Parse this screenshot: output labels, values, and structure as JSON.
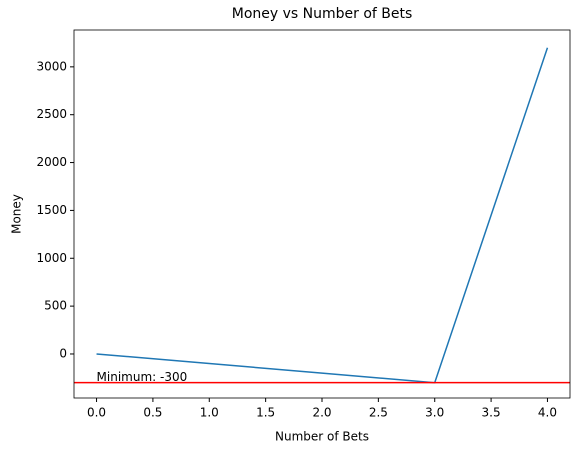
{
  "chart_data": {
    "type": "line",
    "title": "Money vs Number of Bets",
    "x_label": "Number of Bets",
    "y_label": "Money",
    "x": [
      0,
      1,
      2,
      3,
      4
    ],
    "series": [
      {
        "name": "Money",
        "color": "#1f77b4",
        "values": [
          0,
          -100,
          -200,
          -300,
          3200
        ]
      }
    ],
    "xlim": [
      -0.2,
      4.2
    ],
    "xticks": [
      {
        "value": 0,
        "label": "0.0"
      },
      {
        "value": 0.5,
        "label": "0.5"
      },
      {
        "value": 1,
        "label": "1.0"
      },
      {
        "value": 1.5,
        "label": "1.5"
      },
      {
        "value": 2,
        "label": "2.0"
      },
      {
        "value": 2.5,
        "label": "2.5"
      },
      {
        "value": 3,
        "label": "3.0"
      },
      {
        "value": 3.5,
        "label": "3.5"
      },
      {
        "value": 4,
        "label": "4.0"
      }
    ],
    "ylim": [
      -460,
      3385
    ],
    "yticks": [
      0,
      500,
      1000,
      1500,
      2000,
      2500,
      3000
    ],
    "hline": {
      "value": -300,
      "color": "#ff0000",
      "label": "Minimum: -300"
    }
  }
}
